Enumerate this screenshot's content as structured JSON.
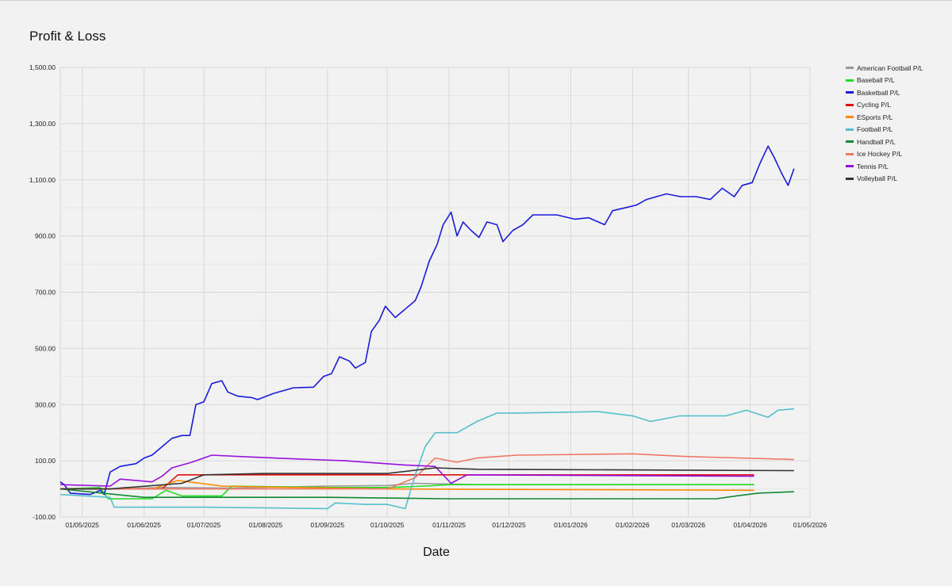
{
  "chart_data": {
    "type": "line",
    "title": "Profit & Loss",
    "xlabel": "Date",
    "ylabel": "",
    "ylim": [
      -100,
      1500
    ],
    "yticks": [
      -100,
      100,
      300,
      500,
      700,
      900,
      1100,
      1300,
      1500
    ],
    "ytick_labels": [
      "-100.00",
      "100.00",
      "300.00",
      "500.00",
      "700.00",
      "900.00",
      "1,100.00",
      "1,300.00",
      "1,500.00"
    ],
    "xlim": [
      "2025-04-20",
      "2026-05-01"
    ],
    "xticks": [
      "2025-05-01",
      "2025-06-01",
      "2025-07-01",
      "2025-08-01",
      "2025-09-01",
      "2025-10-01",
      "2025-11-01",
      "2025-12-01",
      "2026-01-01",
      "2026-02-01",
      "2026-03-01",
      "2026-04-01",
      "2026-05-01"
    ],
    "xtick_labels": [
      "01/05/2025",
      "01/06/2025",
      "01/07/2025",
      "01/08/2025",
      "01/09/2025",
      "01/10/2025",
      "01/11/2025",
      "01/12/2025",
      "01/01/2026",
      "01/02/2026",
      "01/03/2026",
      "01/04/2026",
      "01/05/2026"
    ],
    "grid": true,
    "legend_position": "right",
    "series": [
      {
        "name": "American Football P/L",
        "color": "#999999",
        "points": [
          [
            "2025-04-20",
            0
          ],
          [
            "2025-05-20",
            0
          ],
          [
            "2025-06-10",
            5
          ],
          [
            "2025-07-15",
            3
          ],
          [
            "2025-09-01",
            10
          ],
          [
            "2025-10-01",
            12
          ],
          [
            "2025-10-15",
            20
          ],
          [
            "2025-11-15",
            15
          ],
          [
            "2026-04-03",
            15
          ]
        ]
      },
      {
        "name": "Baseball P/L",
        "color": "#22dd22",
        "points": [
          [
            "2025-04-20",
            0
          ],
          [
            "2025-05-10",
            5
          ],
          [
            "2025-05-14",
            -35
          ],
          [
            "2025-06-05",
            -35
          ],
          [
            "2025-06-12",
            -5
          ],
          [
            "2025-06-20",
            -25
          ],
          [
            "2025-07-10",
            -25
          ],
          [
            "2025-07-15",
            10
          ],
          [
            "2025-09-01",
            5
          ],
          [
            "2025-10-01",
            5
          ],
          [
            "2025-10-20",
            10
          ],
          [
            "2025-11-01",
            15
          ],
          [
            "2026-04-03",
            15
          ]
        ]
      },
      {
        "name": "Basketball P/L",
        "color": "#1a1adb",
        "points": [
          [
            "2025-04-20",
            25
          ],
          [
            "2025-04-22",
            15
          ],
          [
            "2025-04-25",
            -15
          ],
          [
            "2025-05-05",
            -20
          ],
          [
            "2025-05-10",
            -5
          ],
          [
            "2025-05-12",
            -20
          ],
          [
            "2025-05-15",
            60
          ],
          [
            "2025-05-20",
            80
          ],
          [
            "2025-05-28",
            90
          ],
          [
            "2025-06-01",
            110
          ],
          [
            "2025-06-05",
            120
          ],
          [
            "2025-06-10",
            150
          ],
          [
            "2025-06-15",
            180
          ],
          [
            "2025-06-20",
            190
          ],
          [
            "2025-06-24",
            190
          ],
          [
            "2025-06-27",
            300
          ],
          [
            "2025-07-01",
            310
          ],
          [
            "2025-07-05",
            375
          ],
          [
            "2025-07-10",
            385
          ],
          [
            "2025-07-13",
            345
          ],
          [
            "2025-07-18",
            330
          ],
          [
            "2025-07-25",
            325
          ],
          [
            "2025-07-28",
            318
          ],
          [
            "2025-08-05",
            340
          ],
          [
            "2025-08-15",
            360
          ],
          [
            "2025-08-25",
            362
          ],
          [
            "2025-08-30",
            400
          ],
          [
            "2025-09-03",
            410
          ],
          [
            "2025-09-07",
            470
          ],
          [
            "2025-09-12",
            455
          ],
          [
            "2025-09-15",
            430
          ],
          [
            "2025-09-20",
            450
          ],
          [
            "2025-09-23",
            560
          ],
          [
            "2025-09-27",
            600
          ],
          [
            "2025-09-30",
            650
          ],
          [
            "2025-10-05",
            610
          ],
          [
            "2025-10-10",
            640
          ],
          [
            "2025-10-15",
            670
          ],
          [
            "2025-10-18",
            720
          ],
          [
            "2025-10-22",
            810
          ],
          [
            "2025-10-26",
            870
          ],
          [
            "2025-10-29",
            940
          ],
          [
            "2025-11-02",
            985
          ],
          [
            "2025-11-05",
            900
          ],
          [
            "2025-11-08",
            950
          ],
          [
            "2025-11-12",
            920
          ],
          [
            "2025-11-16",
            895
          ],
          [
            "2025-11-20",
            950
          ],
          [
            "2025-11-25",
            940
          ],
          [
            "2025-11-28",
            880
          ],
          [
            "2025-12-03",
            920
          ],
          [
            "2025-12-08",
            940
          ],
          [
            "2025-12-13",
            975
          ],
          [
            "2025-12-25",
            975
          ],
          [
            "2026-01-03",
            960
          ],
          [
            "2026-01-10",
            965
          ],
          [
            "2026-01-18",
            940
          ],
          [
            "2026-01-22",
            990
          ],
          [
            "2026-01-28",
            1000
          ],
          [
            "2026-02-03",
            1010
          ],
          [
            "2026-02-08",
            1030
          ],
          [
            "2026-02-13",
            1040
          ],
          [
            "2026-02-18",
            1050
          ],
          [
            "2026-02-25",
            1040
          ],
          [
            "2026-03-05",
            1040
          ],
          [
            "2026-03-12",
            1030
          ],
          [
            "2026-03-18",
            1070
          ],
          [
            "2026-03-24",
            1040
          ],
          [
            "2026-03-28",
            1080
          ],
          [
            "2026-04-02",
            1090
          ],
          [
            "2026-04-06",
            1160
          ],
          [
            "2026-04-10",
            1220
          ],
          [
            "2026-04-13",
            1180
          ],
          [
            "2026-04-17",
            1120
          ],
          [
            "2026-04-20",
            1080
          ],
          [
            "2026-04-23",
            1140
          ]
        ]
      },
      {
        "name": "Cycling P/L",
        "color": "#dd1111",
        "points": [
          [
            "2025-04-20",
            0
          ],
          [
            "2025-06-10",
            0
          ],
          [
            "2025-06-18",
            50
          ],
          [
            "2025-10-01",
            50
          ],
          [
            "2026-04-03",
            50
          ]
        ]
      },
      {
        "name": "ESports P/L",
        "color": "#ff8800",
        "points": [
          [
            "2025-04-20",
            0
          ],
          [
            "2025-06-05",
            0
          ],
          [
            "2025-06-18",
            30
          ],
          [
            "2025-07-10",
            10
          ],
          [
            "2025-08-15",
            5
          ],
          [
            "2025-10-01",
            0
          ],
          [
            "2026-04-03",
            -5
          ]
        ]
      },
      {
        "name": "Football P/L",
        "color": "#55c0cc",
        "points": [
          [
            "2025-04-20",
            -20
          ],
          [
            "2025-05-15",
            -30
          ],
          [
            "2025-05-17",
            -65
          ],
          [
            "2025-07-01",
            -65
          ],
          [
            "2025-09-01",
            -70
          ],
          [
            "2025-09-05",
            -50
          ],
          [
            "2025-09-20",
            -55
          ],
          [
            "2025-10-01",
            -55
          ],
          [
            "2025-10-10",
            -70
          ],
          [
            "2025-10-15",
            50
          ],
          [
            "2025-10-20",
            150
          ],
          [
            "2025-10-25",
            200
          ],
          [
            "2025-11-05",
            200
          ],
          [
            "2025-11-15",
            240
          ],
          [
            "2025-11-25",
            270
          ],
          [
            "2025-12-05",
            270
          ],
          [
            "2026-01-15",
            275
          ],
          [
            "2026-02-01",
            260
          ],
          [
            "2026-02-10",
            240
          ],
          [
            "2026-02-25",
            260
          ],
          [
            "2026-03-20",
            260
          ],
          [
            "2026-03-30",
            280
          ],
          [
            "2026-04-10",
            255
          ],
          [
            "2026-04-15",
            280
          ],
          [
            "2026-04-23",
            285
          ]
        ]
      },
      {
        "name": "Handball P/L",
        "color": "#118833",
        "points": [
          [
            "2025-04-20",
            0
          ],
          [
            "2025-06-01",
            -30
          ],
          [
            "2025-09-01",
            -30
          ],
          [
            "2025-11-01",
            -35
          ],
          [
            "2026-03-15",
            -35
          ],
          [
            "2026-03-25",
            -25
          ],
          [
            "2026-04-05",
            -15
          ],
          [
            "2026-04-23",
            -10
          ]
        ]
      },
      {
        "name": "Ice Hockey P/L",
        "color": "#ee7766",
        "points": [
          [
            "2025-04-20",
            0
          ],
          [
            "2025-08-01",
            0
          ],
          [
            "2025-10-01",
            0
          ],
          [
            "2025-10-15",
            40
          ],
          [
            "2025-10-25",
            110
          ],
          [
            "2025-11-05",
            95
          ],
          [
            "2025-11-15",
            110
          ],
          [
            "2025-12-05",
            120
          ],
          [
            "2026-02-01",
            125
          ],
          [
            "2026-03-01",
            115
          ],
          [
            "2026-04-23",
            105
          ]
        ]
      },
      {
        "name": "Tennis P/L",
        "color": "#9911dd",
        "points": [
          [
            "2025-04-20",
            15
          ],
          [
            "2025-05-15",
            10
          ],
          [
            "2025-05-20",
            35
          ],
          [
            "2025-06-05",
            25
          ],
          [
            "2025-06-10",
            45
          ],
          [
            "2025-06-15",
            75
          ],
          [
            "2025-06-25",
            95
          ],
          [
            "2025-07-05",
            120
          ],
          [
            "2025-07-20",
            115
          ],
          [
            "2025-08-05",
            110
          ],
          [
            "2025-09-10",
            100
          ],
          [
            "2025-09-30",
            90
          ],
          [
            "2025-10-10",
            85
          ],
          [
            "2025-10-25",
            80
          ],
          [
            "2025-11-02",
            20
          ],
          [
            "2025-11-10",
            50
          ],
          [
            "2026-04-03",
            45
          ]
        ]
      },
      {
        "name": "Volleyball P/L",
        "color": "#333333",
        "points": [
          [
            "2025-04-20",
            0
          ],
          [
            "2025-05-15",
            0
          ],
          [
            "2025-06-20",
            20
          ],
          [
            "2025-07-01",
            50
          ],
          [
            "2025-08-01",
            55
          ],
          [
            "2025-10-01",
            55
          ],
          [
            "2025-10-25",
            75
          ],
          [
            "2025-11-15",
            70
          ],
          [
            "2026-04-23",
            65
          ]
        ]
      }
    ]
  }
}
